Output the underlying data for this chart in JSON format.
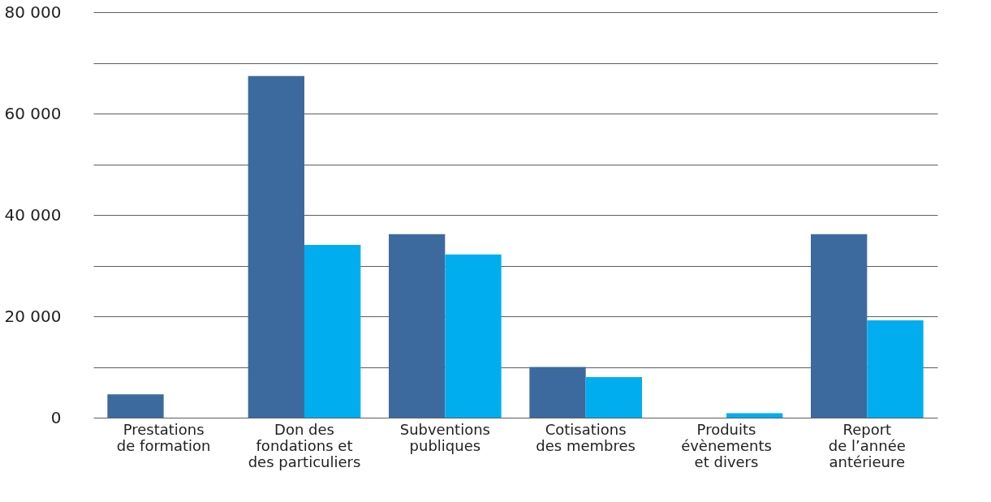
{
  "chart_data": {
    "type": "bar",
    "categories": [
      "Prestations\nde formation",
      "Don des\nfondations et\ndes particuliers",
      "Subventions\npubliques",
      "Cotisations\ndes membres",
      "Produits\névènements\net divers",
      "Report\nde l’année\nantérieure"
    ],
    "series": [
      {
        "color": "#3d6a9e",
        "values": [
          4600,
          67400,
          36200,
          10000,
          null,
          36200
        ]
      },
      {
        "color": "#00aeef",
        "values": [
          null,
          34100,
          32200,
          8000,
          900,
          19200
        ]
      }
    ],
    "ylim": [
      0,
      80000
    ],
    "yticks": [
      {
        "value": 0,
        "label": "0"
      },
      {
        "value": 10000,
        "label": null
      },
      {
        "value": 20000,
        "label": "20 000"
      },
      {
        "value": 30000,
        "label": null
      },
      {
        "value": 40000,
        "label": "40 000"
      },
      {
        "value": 50000,
        "label": null
      },
      {
        "value": 60000,
        "label": "60 000"
      },
      {
        "value": 70000,
        "label": null
      },
      {
        "value": 80000,
        "label": "80 000"
      }
    ],
    "grid": "y",
    "legend": false
  }
}
